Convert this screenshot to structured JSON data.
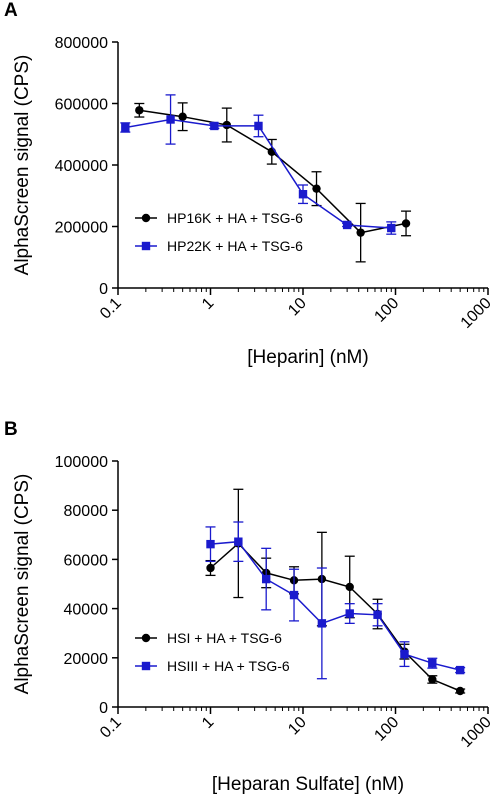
{
  "chart_data": [
    {
      "type": "line",
      "panel": "A",
      "xlabel": "[Heparin] (nM)",
      "ylabel": "AlphaScreen signal (CPS)",
      "xscale": "log",
      "xlim": [
        0.1,
        1000
      ],
      "ylim": [
        0,
        800000
      ],
      "xticks": [
        "0.1",
        "1",
        "10",
        "100",
        "1000"
      ],
      "yticks": [
        "0",
        "200000",
        "400000",
        "600000",
        "800000"
      ],
      "legend": "center-left",
      "grid": false,
      "series": [
        {
          "name": "HP16K + HA + TSG-6",
          "color": "#000000",
          "marker": "circle",
          "x": [
            0.17,
            0.5,
            1.5,
            4.6,
            14,
            42,
            130
          ],
          "y": [
            578000,
            557000,
            530000,
            443000,
            323000,
            180000,
            210000
          ],
          "err": [
            22000,
            45000,
            55000,
            40000,
            55000,
            95000,
            40000
          ]
        },
        {
          "name": "HP22K + HA + TSG-6",
          "color": "#1a1acd",
          "marker": "square",
          "x": [
            0.12,
            0.37,
            1.1,
            3.3,
            10,
            30,
            90
          ],
          "y": [
            522000,
            548000,
            527000,
            527000,
            305000,
            205000,
            195000
          ],
          "err": [
            15000,
            80000,
            8000,
            35000,
            30000,
            5000,
            20000
          ]
        }
      ]
    },
    {
      "type": "line",
      "panel": "B",
      "xlabel": "[Heparan Sulfate] (nM)",
      "ylabel": "AlphaScreen signal (CPS)",
      "xscale": "log",
      "xlim": [
        0.1,
        1000
      ],
      "ylim": [
        0,
        100000
      ],
      "xticks": [
        "0.1",
        "1",
        "10",
        "100",
        "1000"
      ],
      "yticks": [
        "0",
        "20000",
        "40000",
        "60000",
        "80000",
        "100000"
      ],
      "legend": "bottom-left",
      "grid": false,
      "series": [
        {
          "name": "HSI + HA + TSG-6",
          "color": "#000000",
          "marker": "circle",
          "x": [
            1,
            2,
            4,
            8,
            16,
            32,
            64,
            125,
            250,
            500
          ],
          "y": [
            56500,
            66500,
            54500,
            51500,
            52000,
            48800,
            37800,
            22500,
            11200,
            6500
          ],
          "err": [
            3000,
            22000,
            6000,
            5500,
            19000,
            12500,
            6000,
            3000,
            1500,
            800
          ]
        },
        {
          "name": "HSIII + HA + TSG-6",
          "color": "#1a1acd",
          "marker": "square",
          "x": [
            1,
            2,
            4,
            8,
            16,
            32,
            64,
            125,
            250,
            500
          ],
          "y": [
            66200,
            67200,
            52000,
            45500,
            34000,
            38000,
            37500,
            21500,
            17800,
            15000
          ],
          "err": [
            7000,
            8000,
            12500,
            10500,
            22500,
            4000,
            4500,
            5000,
            2000,
            1000
          ]
        }
      ]
    }
  ]
}
